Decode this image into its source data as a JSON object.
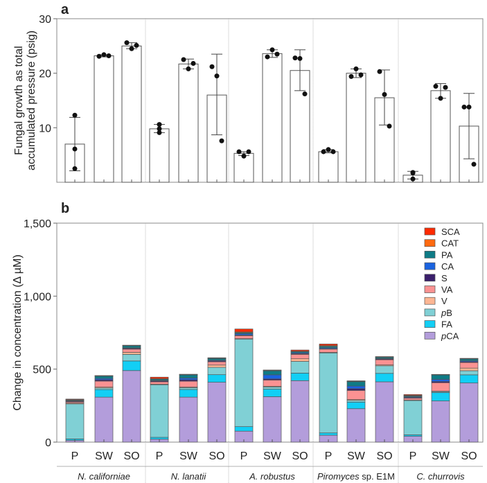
{
  "chart_data": [
    {
      "type": "bar",
      "panel_label": "a",
      "ylabel": [
        "Fungal growth as total",
        "accumulated pressure (psig)"
      ],
      "ylim": [
        0,
        30
      ],
      "yticks": [
        10,
        20,
        30
      ],
      "groups": [
        {
          "name": "N. californiae",
          "italic_part": "N. californiae",
          "rest": ""
        },
        {
          "name": "N. lanatii",
          "italic_part": "N. lanatii",
          "rest": ""
        },
        {
          "name": "A. robustus",
          "italic_part": "A. robustus",
          "rest": ""
        },
        {
          "name": "Piromyces sp. E1M",
          "italic_part": "Piromyces",
          "rest": " sp. E1M"
        },
        {
          "name": "C. churrovis",
          "italic_part": "C. churrovis",
          "rest": ""
        }
      ],
      "conditions": [
        "P",
        "SW",
        "SO"
      ],
      "values": [
        [
          7.0,
          23.2,
          25.0
        ],
        [
          9.8,
          21.7,
          16.0
        ],
        [
          5.3,
          23.6,
          20.5
        ],
        [
          5.6,
          20.0,
          15.5
        ],
        [
          1.3,
          16.8,
          10.3
        ]
      ],
      "error_low": [
        [
          2.1,
          23.0,
          24.5
        ],
        [
          9.1,
          20.8,
          8.7
        ],
        [
          4.9,
          22.9,
          16.8
        ],
        [
          5.4,
          19.2,
          10.5
        ],
        [
          0.6,
          15.4,
          4.3
        ]
      ],
      "error_high": [
        [
          11.9,
          23.4,
          25.6
        ],
        [
          10.6,
          22.6,
          23.5
        ],
        [
          5.6,
          24.3,
          24.3
        ],
        [
          6.0,
          20.8,
          20.6
        ],
        [
          2.0,
          18.1,
          16.3
        ]
      ],
      "points": [
        [
          [
            12.3,
            6.1,
            2.5
          ],
          [
            23.1,
            23.4,
            23.2
          ],
          [
            25.6,
            24.5,
            25.1
          ]
        ],
        [
          [
            10.6,
            9.8,
            9.1
          ],
          [
            22.5,
            20.8,
            21.8
          ],
          [
            21.2,
            19.5,
            7.6
          ]
        ],
        [
          [
            5.6,
            4.8,
            5.6
          ],
          [
            23.0,
            24.3,
            23.5
          ],
          [
            22.8,
            22.7,
            16.2
          ]
        ],
        [
          [
            5.6,
            6.0,
            5.6
          ],
          [
            19.4,
            20.8,
            19.7
          ],
          [
            20.3,
            16.1,
            10.3
          ]
        ],
        [
          [
            1.8,
            0.6,
            1.7
          ],
          [
            17.6,
            15.4,
            17.4
          ],
          [
            13.8,
            13.8,
            3.3
          ]
        ]
      ]
    },
    {
      "type": "bar",
      "stacked": true,
      "panel_label": "b",
      "ylabel": "Change in concentration (Δ µM)",
      "ylim": [
        0,
        1500
      ],
      "yticks": [
        0,
        500,
        1000,
        1500
      ],
      "ytick_labels": [
        "0",
        "500",
        "1,000",
        "1,500"
      ],
      "legend_position": "top-right",
      "series": [
        {
          "name": "pCA",
          "italic_prefix": "p",
          "label_rest": "CA",
          "color": "#b39ddb",
          "values": [
            [
              12,
              308,
              490
            ],
            [
              20,
              308,
              410
            ],
            [
              75,
              311,
              421
            ],
            [
              47,
              229,
              413
            ],
            [
              40,
              282,
              405
            ]
          ]
        },
        {
          "name": "FA",
          "italic_prefix": "",
          "label_rest": "FA",
          "color": "#12cff5",
          "values": [
            [
              10,
              52,
              66
            ],
            [
              13,
              53,
              52
            ],
            [
              31,
              52,
              52
            ],
            [
              16,
              45,
              58
            ],
            [
              10,
              58,
              56
            ]
          ]
        },
        {
          "name": "pB",
          "italic_prefix": "p",
          "label_rest": "B",
          "color": "#80d0d5",
          "values": [
            [
              240,
              11,
              45
            ],
            [
              360,
              12,
              50
            ],
            [
              600,
              15,
              80
            ],
            [
              548,
              12,
              52
            ],
            [
              235,
              6,
              28
            ]
          ]
        },
        {
          "name": "V",
          "italic_prefix": "",
          "label_rest": "V",
          "color": "#fdb693",
          "values": [
            [
              5,
              6,
              14
            ],
            [
              4,
              4,
              16
            ],
            [
              3,
              5,
              18
            ],
            [
              4,
              6,
              6
            ],
            [
              4,
              3,
              18
            ]
          ]
        },
        {
          "name": "VA",
          "italic_prefix": "",
          "label_rest": "VA",
          "color": "#fb9292",
          "values": [
            [
              8,
              41,
              22
            ],
            [
              16,
              40,
              22
            ],
            [
              20,
              42,
              30
            ],
            [
              22,
              62,
              35
            ],
            [
              12,
              58,
              38
            ]
          ]
        },
        {
          "name": "S",
          "italic_prefix": "",
          "label_rest": "S",
          "color": "#3a1f6b",
          "values": [
            [
              5,
              9,
              6
            ],
            [
              6,
              10,
              6
            ],
            [
              4,
              8,
              5
            ],
            [
              4,
              12,
              6
            ],
            [
              5,
              8,
              6
            ]
          ]
        },
        {
          "name": "CA",
          "italic_prefix": "",
          "label_rest": "CA",
          "color": "#1a63e0",
          "values": [
            [
              3,
              9,
              3
            ],
            [
              4,
              12,
              5
            ],
            [
              9,
              28,
              6
            ],
            [
              6,
              18,
              3
            ],
            [
              5,
              15,
              6
            ]
          ]
        },
        {
          "name": "PA",
          "italic_prefix": "",
          "label_rest": "PA",
          "color": "#0e7b86",
          "values": [
            [
              5,
              16,
              14
            ],
            [
              8,
              22,
              12
            ],
            [
              8,
              27,
              8
            ],
            [
              10,
              30,
              8
            ],
            [
              6,
              30,
              12
            ]
          ]
        },
        {
          "name": "CAT",
          "italic_prefix": "",
          "label_rest": "CAT",
          "color": "#ff6a10",
          "values": [
            [
              3,
              2,
              2
            ],
            [
              4,
              2,
              2
            ],
            [
              5,
              3,
              3
            ],
            [
              5,
              3,
              2
            ],
            [
              3,
              2,
              2
            ]
          ]
        },
        {
          "name": "SCA",
          "italic_prefix": "",
          "label_rest": "SCA",
          "color": "#ff2a00",
          "values": [
            [
              4,
              2,
              2
            ],
            [
              10,
              2,
              3
            ],
            [
              20,
              3,
              8
            ],
            [
              10,
              3,
              3
            ],
            [
              6,
              2,
              3
            ]
          ]
        }
      ]
    }
  ]
}
